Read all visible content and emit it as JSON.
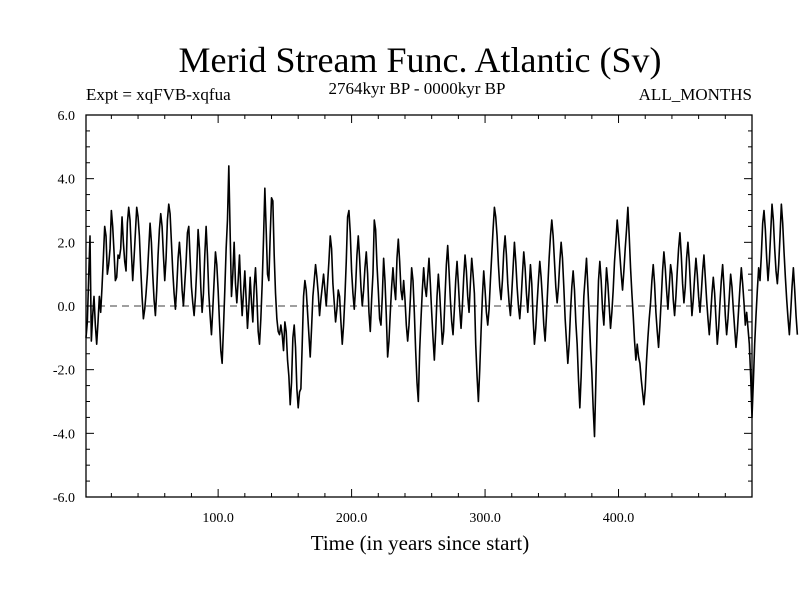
{
  "chart_data": {
    "type": "line",
    "title": "Merid Stream Func. Atlantic (Sv)",
    "subtitle_left": "Expt = xqFVB-xqfua",
    "subtitle_center": "2764kyr BP - 0000kyr BP",
    "subtitle_right": "ALL_MONTHS",
    "xlabel": "Time (in years since start)",
    "ylabel": "",
    "xlim": [
      1,
      500
    ],
    "ylim": [
      -6.0,
      6.0
    ],
    "x_ticks": [
      100,
      200,
      300,
      400
    ],
    "x_tick_labels": [
      "100.0",
      "200.0",
      "300.0",
      "400.0"
    ],
    "y_ticks": [
      -6,
      -4,
      -2,
      0,
      2,
      4,
      6
    ],
    "y_tick_labels": [
      "-6.0",
      "-4.0",
      "-2.0",
      "0.0",
      "2.0",
      "4.0",
      "6.0"
    ],
    "zero_line": true,
    "series": [
      {
        "name": "Merid Stream Func. Atlantic",
        "x_start": 1,
        "x_step": 1,
        "values": [
          -1.0,
          -0.5,
          0.9,
          2.2,
          -1.1,
          -0.3,
          0.3,
          -0.6,
          -1.2,
          -0.5,
          0.3,
          -0.2,
          0.6,
          1.5,
          2.5,
          2.2,
          1.0,
          1.3,
          1.8,
          3.0,
          2.5,
          1.7,
          0.8,
          0.9,
          1.6,
          1.5,
          1.8,
          2.8,
          2.0,
          1.4,
          1.1,
          2.6,
          3.1,
          2.7,
          1.7,
          0.8,
          1.5,
          2.3,
          3.1,
          2.8,
          2.2,
          1.2,
          0.3,
          -0.4,
          -0.1,
          0.4,
          1.0,
          1.8,
          2.6,
          2.0,
          1.0,
          0.2,
          -0.3,
          0.5,
          1.6,
          2.4,
          2.9,
          2.5,
          1.6,
          0.8,
          1.5,
          2.7,
          3.2,
          2.9,
          2.0,
          1.1,
          0.4,
          -0.1,
          0.6,
          1.5,
          2.0,
          1.4,
          0.5,
          0.0,
          0.7,
          1.4,
          2.3,
          2.5,
          1.5,
          0.6,
          0.1,
          -0.3,
          0.3,
          1.2,
          2.4,
          1.8,
          0.6,
          -0.2,
          0.4,
          1.6,
          2.5,
          1.6,
          0.4,
          -0.3,
          -0.9,
          -0.1,
          0.8,
          1.7,
          1.3,
          0.5,
          -0.5,
          -1.4,
          -1.8,
          -0.7,
          0.5,
          1.8,
          2.7,
          4.4,
          2.3,
          0.3,
          1.0,
          2.0,
          0.7,
          0.1,
          0.8,
          1.6,
          0.5,
          -0.3,
          0.4,
          1.1,
          0.2,
          -0.7,
          0.0,
          0.9,
          0.1,
          -0.5,
          0.6,
          1.2,
          0.3,
          -0.8,
          -1.2,
          -0.4,
          0.7,
          2.1,
          3.7,
          2.4,
          1.0,
          0.8,
          2.2,
          3.4,
          3.3,
          1.6,
          0.4,
          -0.4,
          -0.8,
          -0.9,
          -0.6,
          -0.9,
          -1.4,
          -0.5,
          -0.8,
          -1.7,
          -2.2,
          -3.1,
          -2.4,
          -1.0,
          -0.6,
          -1.3,
          -2.6,
          -3.2,
          -2.7,
          -2.6,
          -1.2,
          0.3,
          0.8,
          0.5,
          -0.2,
          -0.9,
          -1.6,
          -0.7,
          0.3,
          0.8,
          1.3,
          0.9,
          0.4,
          -0.3,
          0.2,
          0.6,
          1.0,
          0.5,
          0.0,
          0.7,
          1.4,
          2.2,
          1.8,
          0.7,
          0.1,
          -0.5,
          -0.1,
          0.5,
          0.3,
          -0.5,
          -1.2,
          -0.6,
          0.3,
          1.4,
          2.8,
          3.0,
          2.3,
          1.1,
          0.4,
          -0.1,
          0.6,
          1.6,
          2.2,
          1.5,
          0.6,
          0.0,
          0.5,
          1.2,
          1.7,
          1.0,
          -0.2,
          -0.8,
          0.2,
          1.0,
          2.7,
          2.4,
          1.3,
          0.5,
          -0.4,
          -0.6,
          0.3,
          1.5,
          0.8,
          -0.3,
          -1.6,
          -1.1,
          -0.2,
          0.6,
          1.2,
          0.6,
          0.2,
          1.5,
          2.1,
          1.4,
          0.5,
          0.2,
          0.8,
          0.2,
          -0.6,
          -1.1,
          -0.6,
          0.2,
          1.2,
          0.8,
          -0.2,
          -1.4,
          -2.4,
          -3.0,
          -1.4,
          -0.4,
          0.5,
          1.2,
          0.6,
          0.3,
          0.9,
          1.5,
          0.7,
          -0.2,
          -1.0,
          -1.7,
          -0.8,
          0.3,
          1.0,
          0.4,
          -0.4,
          -1.2,
          -0.8,
          0.3,
          1.3,
          1.9,
          1.1,
          0.2,
          -0.5,
          -0.9,
          -0.1,
          0.8,
          1.4,
          0.7,
          -0.1,
          -0.7,
          0.0,
          0.9,
          1.6,
          1.1,
          0.3,
          -0.2,
          0.7,
          1.5,
          1.0,
          0.4,
          -1.2,
          -2.2,
          -3.0,
          -2.0,
          -0.8,
          0.3,
          1.1,
          0.5,
          -0.2,
          -0.6,
          -0.1,
          0.8,
          1.6,
          2.4,
          3.1,
          2.8,
          2.2,
          1.3,
          0.6,
          0.2,
          0.8,
          1.7,
          2.2,
          1.6,
          0.7,
          0.1,
          -0.3,
          0.4,
          1.2,
          2.0,
          1.4,
          0.6,
          0.0,
          -0.4,
          0.2,
          1.0,
          1.7,
          1.2,
          0.4,
          -0.2,
          0.5,
          1.3,
          0.7,
          -0.4,
          -1.2,
          -0.7,
          0.1,
          0.8,
          1.4,
          0.9,
          0.2,
          -0.6,
          -1.1,
          -0.3,
          0.6,
          1.5,
          2.2,
          2.7,
          2.2,
          1.4,
          0.6,
          0.1,
          0.6,
          1.4,
          2.0,
          1.5,
          0.6,
          -0.4,
          -1.1,
          -1.8,
          -1.2,
          -0.2,
          0.6,
          1.1,
          0.5,
          -0.5,
          -1.2,
          -2.3,
          -3.2,
          -2.2,
          -0.8,
          0.3,
          0.9,
          1.5,
          0.6,
          -0.3,
          -1.3,
          -2.1,
          -3.2,
          -4.1,
          -2.4,
          -0.6,
          0.8,
          1.4,
          0.8,
          -0.1,
          -0.6,
          0.3,
          1.2,
          0.7,
          0.0,
          -0.7,
          -0.2,
          0.5,
          1.4,
          2.0,
          2.7,
          2.2,
          1.6,
          1.0,
          0.5,
          1.1,
          1.8,
          2.4,
          3.1,
          2.2,
          1.2,
          0.4,
          -0.3,
          -1.1,
          -1.7,
          -1.2,
          -1.6,
          -1.8,
          -2.3,
          -2.7,
          -3.1,
          -2.6,
          -1.7,
          -1.0,
          -0.4,
          0.1,
          0.8,
          1.3,
          0.7,
          -0.2,
          -0.8,
          -1.3,
          -0.6,
          0.2,
          1.1,
          1.7,
          1.2,
          0.5,
          -0.1,
          0.6,
          1.3,
          1.0,
          0.2,
          -0.3,
          0.3,
          1.1,
          1.8,
          2.3,
          1.6,
          0.7,
          0.1,
          0.6,
          1.5,
          2.0,
          1.4,
          0.5,
          -0.3,
          0.2,
          0.9,
          1.5,
          1.0,
          0.3,
          -0.2,
          0.4,
          1.1,
          1.6,
          0.9,
          0.2,
          -0.4,
          -0.9,
          -0.3,
          0.4,
          0.9,
          0.4,
          -0.4,
          -1.2,
          -0.7,
          0.1,
          0.8,
          1.3,
          0.6,
          -0.3,
          -0.9,
          -0.4,
          0.3,
          1.0,
          0.6,
          -0.1,
          -0.7,
          -1.3,
          -0.8,
          -0.1,
          0.6,
          1.2,
          0.7,
          0.1,
          -0.6,
          -0.2,
          -0.7,
          -1.2,
          -2.2,
          -3.5,
          -2.4,
          -1.2,
          -0.3,
          0.5,
          1.2,
          0.8,
          1.6,
          2.6,
          3.0,
          2.4,
          1.5,
          0.8,
          1.4,
          2.3,
          3.2,
          2.7,
          1.8,
          1.1,
          0.7,
          1.3,
          2.2,
          3.2,
          2.6,
          1.7,
          0.9,
          0.2,
          -0.4,
          -0.9,
          -0.2,
          0.6,
          1.2,
          0.5,
          -0.3,
          -0.9
        ]
      }
    ],
    "line_color": "#000000",
    "zero_line_color": "#000000"
  }
}
